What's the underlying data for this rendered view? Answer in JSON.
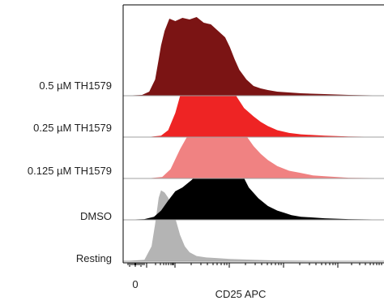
{
  "chart_data": {
    "type": "area",
    "subtype": "stacked-histogram-ridgeline",
    "title": "",
    "xlabel": "CD25 APC",
    "ylabel": "",
    "x_tick_labels": [
      "0"
    ],
    "x_scale": "biexponential",
    "grid": false,
    "legend": "none",
    "series": [
      {
        "name": "0.5 µM TH1579",
        "color": "#7b1414",
        "x": [
          -1.5,
          -0.7,
          -0.4,
          -0.15,
          0,
          0.1,
          0.25,
          0.45,
          0.7,
          1.0,
          1.3,
          1.6,
          1.9,
          2.2,
          2.5,
          2.8,
          3.0,
          3.2,
          3.4,
          3.7,
          4.0,
          4.3,
          4.6,
          5.0,
          5.5,
          6.0,
          7.0,
          8.0,
          9.0,
          9.5
        ],
        "y": [
          0,
          0.01,
          0.05,
          0.2,
          0.45,
          0.62,
          0.8,
          0.95,
          0.92,
          0.96,
          0.94,
          0.97,
          0.9,
          0.88,
          0.8,
          0.72,
          0.6,
          0.45,
          0.32,
          0.2,
          0.12,
          0.09,
          0.07,
          0.05,
          0.04,
          0.03,
          0.02,
          0.01,
          0.005,
          0
        ]
      },
      {
        "name": "0.25 µM TH1579",
        "color": "#ee2424",
        "x": [
          -1.5,
          -0.5,
          0.1,
          0.4,
          0.7,
          1.0,
          1.4,
          1.8,
          2.0,
          2.2,
          2.5,
          2.8,
          3.0,
          3.3,
          3.6,
          4.0,
          4.3,
          4.6,
          5.0,
          5.5,
          6.0,
          7.0,
          8.0,
          9.0,
          9.5
        ],
        "y": [
          0,
          0,
          0.02,
          0.1,
          0.35,
          0.72,
          0.92,
          0.97,
          0.95,
          0.92,
          0.88,
          0.82,
          0.75,
          0.58,
          0.42,
          0.3,
          0.22,
          0.16,
          0.1,
          0.06,
          0.04,
          0.02,
          0.01,
          0.005,
          0
        ]
      },
      {
        "name": "0.125 µM TH1579",
        "color": "#f08282",
        "x": [
          -1.5,
          -0.5,
          0.15,
          0.5,
          0.9,
          1.3,
          1.7,
          2.1,
          2.3,
          2.5,
          2.8,
          3.1,
          3.4,
          3.7,
          4.0,
          4.3,
          4.6,
          5.0,
          5.5,
          6.0,
          6.5,
          7.0,
          8.0,
          9.0,
          9.5
        ],
        "y": [
          0,
          0,
          0.02,
          0.12,
          0.38,
          0.6,
          0.72,
          0.92,
          0.96,
          0.98,
          0.92,
          0.85,
          0.7,
          0.55,
          0.42,
          0.32,
          0.24,
          0.16,
          0.1,
          0.07,
          0.04,
          0.03,
          0.01,
          0.005,
          0
        ]
      },
      {
        "name": "DMSO",
        "color": "#000000",
        "x": [
          -1.5,
          -0.6,
          -0.2,
          0.1,
          0.4,
          0.7,
          1.0,
          1.4,
          1.8,
          2.2,
          2.6,
          2.9,
          3.2,
          3.5,
          3.8,
          4.2,
          4.6,
          5.0,
          5.3,
          5.6,
          6.0,
          6.5,
          7.0,
          8.0,
          9.0,
          9.5
        ],
        "y": [
          0,
          0.01,
          0.04,
          0.12,
          0.25,
          0.37,
          0.42,
          0.52,
          0.66,
          0.8,
          0.9,
          0.88,
          0.78,
          0.6,
          0.42,
          0.28,
          0.18,
          0.12,
          0.09,
          0.06,
          0.04,
          0.03,
          0.02,
          0.01,
          0.005,
          0
        ]
      },
      {
        "name": "Resting",
        "color": "#b4b4b4",
        "x": [
          -1.5,
          -0.6,
          -0.3,
          -0.15,
          0,
          0.1,
          0.25,
          0.4,
          0.55,
          0.75,
          0.9,
          1.1,
          1.3,
          1.6,
          2.0,
          2.5,
          3.0,
          3.5,
          4.0,
          5.0,
          6.0,
          7.0,
          8.0,
          9.0,
          9.5
        ],
        "y": [
          0,
          0.02,
          0.2,
          0.5,
          0.85,
          0.95,
          0.92,
          0.85,
          0.72,
          0.52,
          0.35,
          0.2,
          0.12,
          0.07,
          0.05,
          0.04,
          0.03,
          0.025,
          0.02,
          0.01,
          0.006,
          0.003,
          0.002,
          0.001,
          0
        ]
      }
    ]
  }
}
